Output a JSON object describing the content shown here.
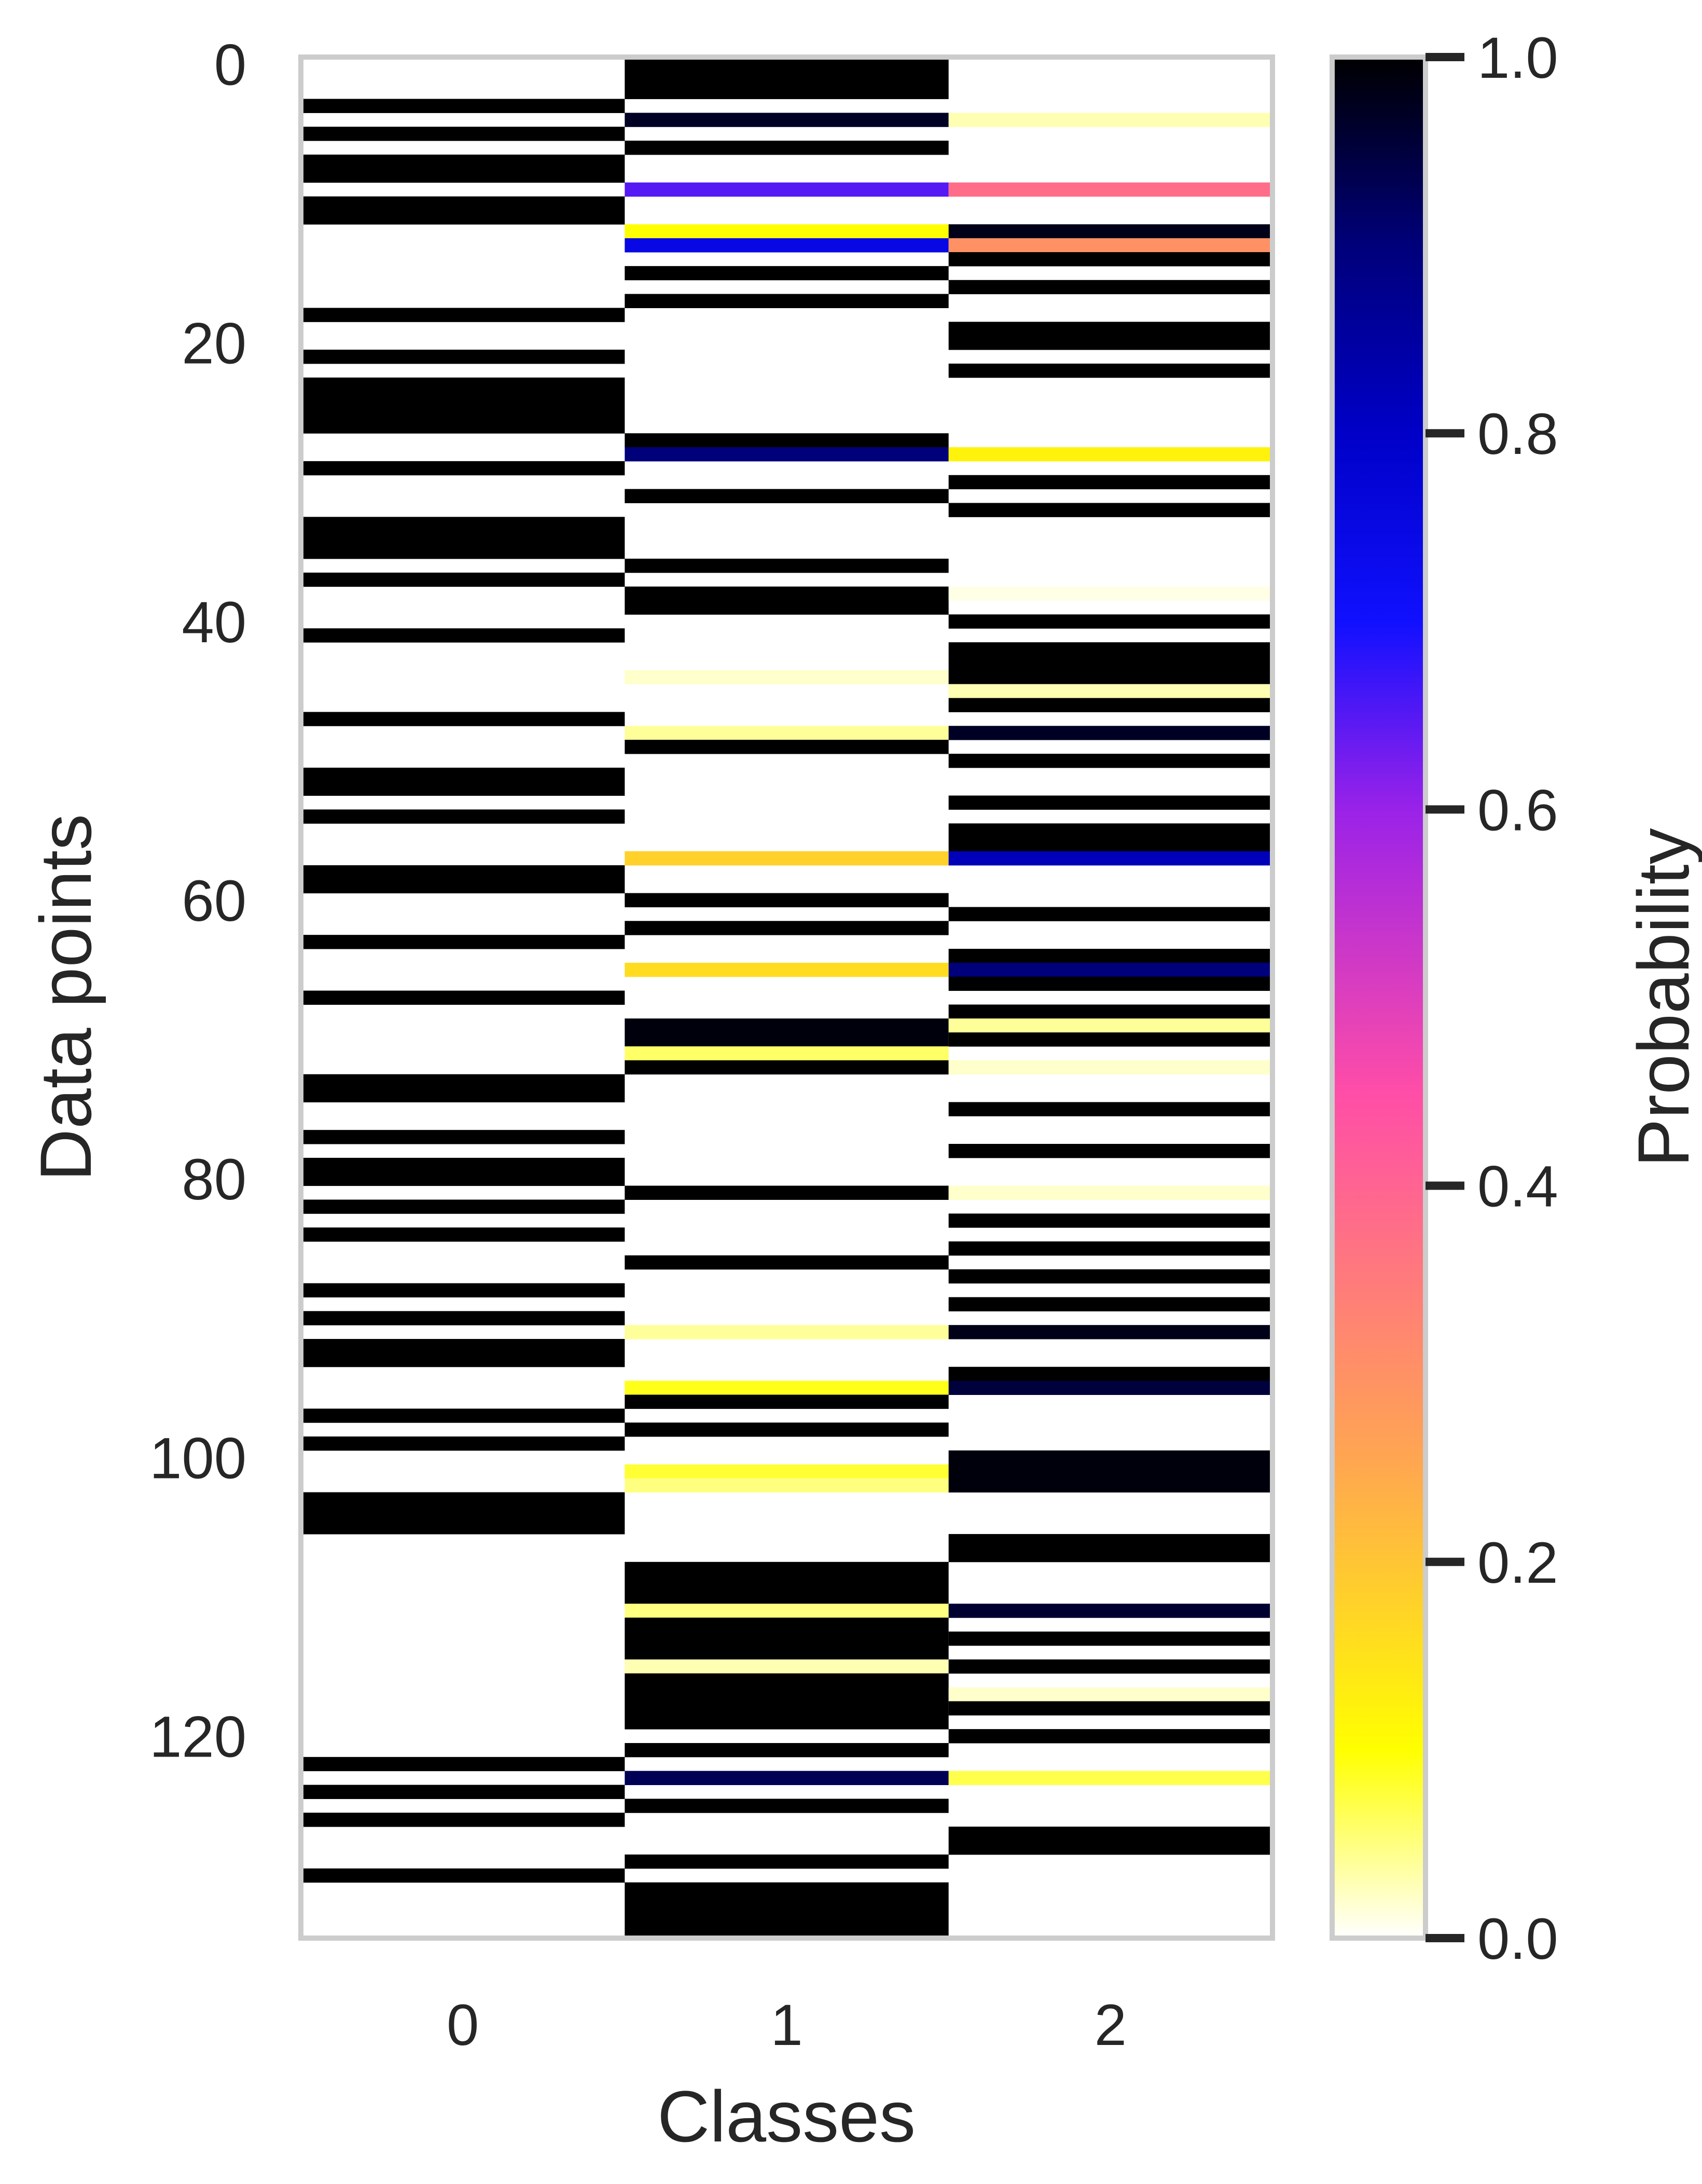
{
  "chart_data": {
    "type": "heatmap",
    "xlabel": "Classes",
    "ylabel": "Data points",
    "x_categories": [
      "0",
      "1",
      "2"
    ],
    "y_ticks": [
      "0",
      "20",
      "40",
      "60",
      "80",
      "100",
      "120"
    ],
    "y_tick_values": [
      0,
      20,
      40,
      60,
      80,
      100,
      120
    ],
    "n_rows": 135,
    "colormap": "gnuplot2_r",
    "colorbar": {
      "label": "Probability",
      "range": [
        0.0,
        1.0
      ],
      "ticks": [
        "0.0",
        "0.2",
        "0.4",
        "0.6",
        "0.8",
        "1.0"
      ],
      "tick_values": [
        0.0,
        0.2,
        0.4,
        0.6,
        0.8,
        1.0
      ]
    },
    "grid": false,
    "note_values": "each column lists [first_row, last_row, probability] runs; unlisted rows are 0.0",
    "columns": [
      {
        "class": "0",
        "runs": [
          [
            3,
            3,
            1.0
          ],
          [
            5,
            5,
            1.0
          ],
          [
            7,
            8,
            1.0
          ],
          [
            10,
            11,
            1.0
          ],
          [
            18,
            18,
            1.0
          ],
          [
            21,
            21,
            1.0
          ],
          [
            23,
            26,
            1.0
          ],
          [
            29,
            29,
            1.0
          ],
          [
            33,
            35,
            1.0
          ],
          [
            37,
            37,
            1.0
          ],
          [
            41,
            41,
            1.0
          ],
          [
            47,
            47,
            1.0
          ],
          [
            51,
            52,
            1.0
          ],
          [
            54,
            54,
            1.0
          ],
          [
            58,
            59,
            1.0
          ],
          [
            63,
            63,
            1.0
          ],
          [
            67,
            67,
            1.0
          ],
          [
            73,
            74,
            1.0
          ],
          [
            77,
            77,
            1.0
          ],
          [
            79,
            80,
            1.0
          ],
          [
            82,
            82,
            1.0
          ],
          [
            84,
            84,
            1.0
          ],
          [
            88,
            88,
            1.0
          ],
          [
            90,
            90,
            1.0
          ],
          [
            92,
            93,
            1.0
          ],
          [
            97,
            97,
            1.0
          ],
          [
            99,
            99,
            1.0
          ],
          [
            103,
            105,
            1.0
          ],
          [
            122,
            122,
            1.0
          ],
          [
            124,
            124,
            1.0
          ],
          [
            126,
            126,
            1.0
          ],
          [
            130,
            130,
            1.0
          ]
        ]
      },
      {
        "class": "1",
        "runs": [
          [
            0,
            2,
            1.0
          ],
          [
            4,
            4,
            0.97
          ],
          [
            6,
            6,
            1.0
          ],
          [
            9,
            9,
            0.65
          ],
          [
            12,
            12,
            0.1
          ],
          [
            13,
            13,
            0.75
          ],
          [
            15,
            15,
            1.0
          ],
          [
            17,
            17,
            1.0
          ],
          [
            27,
            27,
            1.0
          ],
          [
            28,
            28,
            0.9
          ],
          [
            31,
            31,
            1.0
          ],
          [
            36,
            36,
            1.0
          ],
          [
            38,
            39,
            1.0
          ],
          [
            44,
            44,
            0.02
          ],
          [
            48,
            48,
            0.04
          ],
          [
            49,
            49,
            1.0
          ],
          [
            57,
            57,
            0.18
          ],
          [
            60,
            60,
            1.0
          ],
          [
            62,
            62,
            1.0
          ],
          [
            65,
            65,
            0.16
          ],
          [
            69,
            70,
            0.99
          ],
          [
            71,
            71,
            0.06
          ],
          [
            72,
            72,
            1.0
          ],
          [
            81,
            81,
            1.0
          ],
          [
            86,
            86,
            1.0
          ],
          [
            91,
            91,
            0.04
          ],
          [
            95,
            95,
            0.09
          ],
          [
            96,
            96,
            1.0
          ],
          [
            98,
            98,
            1.0
          ],
          [
            101,
            101,
            0.08
          ],
          [
            102,
            102,
            0.05
          ],
          [
            108,
            110,
            1.0
          ],
          [
            111,
            111,
            0.05
          ],
          [
            112,
            114,
            1.0
          ],
          [
            115,
            115,
            0.03
          ],
          [
            116,
            118,
            1.0
          ],
          [
            119,
            119,
            1.0
          ],
          [
            121,
            121,
            1.0
          ],
          [
            123,
            123,
            0.93
          ],
          [
            125,
            125,
            1.0
          ],
          [
            129,
            129,
            1.0
          ],
          [
            131,
            134,
            1.0
          ]
        ]
      },
      {
        "class": "2",
        "runs": [
          [
            4,
            4,
            0.03
          ],
          [
            9,
            9,
            0.38
          ],
          [
            12,
            12,
            0.98
          ],
          [
            13,
            13,
            0.3
          ],
          [
            14,
            14,
            1.0
          ],
          [
            16,
            16,
            1.0
          ],
          [
            19,
            20,
            1.0
          ],
          [
            22,
            22,
            1.0
          ],
          [
            28,
            28,
            0.12
          ],
          [
            30,
            30,
            1.0
          ],
          [
            32,
            32,
            1.0
          ],
          [
            38,
            38,
            0.01
          ],
          [
            40,
            40,
            1.0
          ],
          [
            42,
            44,
            1.0
          ],
          [
            45,
            45,
            0.03
          ],
          [
            46,
            46,
            1.0
          ],
          [
            48,
            48,
            0.97
          ],
          [
            50,
            50,
            1.0
          ],
          [
            53,
            53,
            1.0
          ],
          [
            55,
            56,
            1.0
          ],
          [
            57,
            57,
            0.82
          ],
          [
            61,
            61,
            1.0
          ],
          [
            64,
            64,
            1.0
          ],
          [
            65,
            65,
            0.9
          ],
          [
            66,
            66,
            1.0
          ],
          [
            68,
            68,
            1.0
          ],
          [
            69,
            69,
            0.04
          ],
          [
            70,
            70,
            1.0
          ],
          [
            72,
            72,
            0.02
          ],
          [
            75,
            75,
            1.0
          ],
          [
            78,
            78,
            1.0
          ],
          [
            81,
            81,
            0.02
          ],
          [
            83,
            83,
            1.0
          ],
          [
            85,
            85,
            1.0
          ],
          [
            87,
            87,
            1.0
          ],
          [
            89,
            89,
            1.0
          ],
          [
            91,
            91,
            0.98
          ],
          [
            94,
            94,
            1.0
          ],
          [
            95,
            95,
            0.95
          ],
          [
            100,
            102,
            0.99
          ],
          [
            106,
            107,
            1.0
          ],
          [
            111,
            111,
            0.96
          ],
          [
            113,
            113,
            1.0
          ],
          [
            115,
            115,
            1.0
          ],
          [
            117,
            117,
            0.02
          ],
          [
            118,
            118,
            1.0
          ],
          [
            120,
            120,
            1.0
          ],
          [
            123,
            123,
            0.07
          ],
          [
            127,
            128,
            1.0
          ]
        ]
      }
    ]
  }
}
